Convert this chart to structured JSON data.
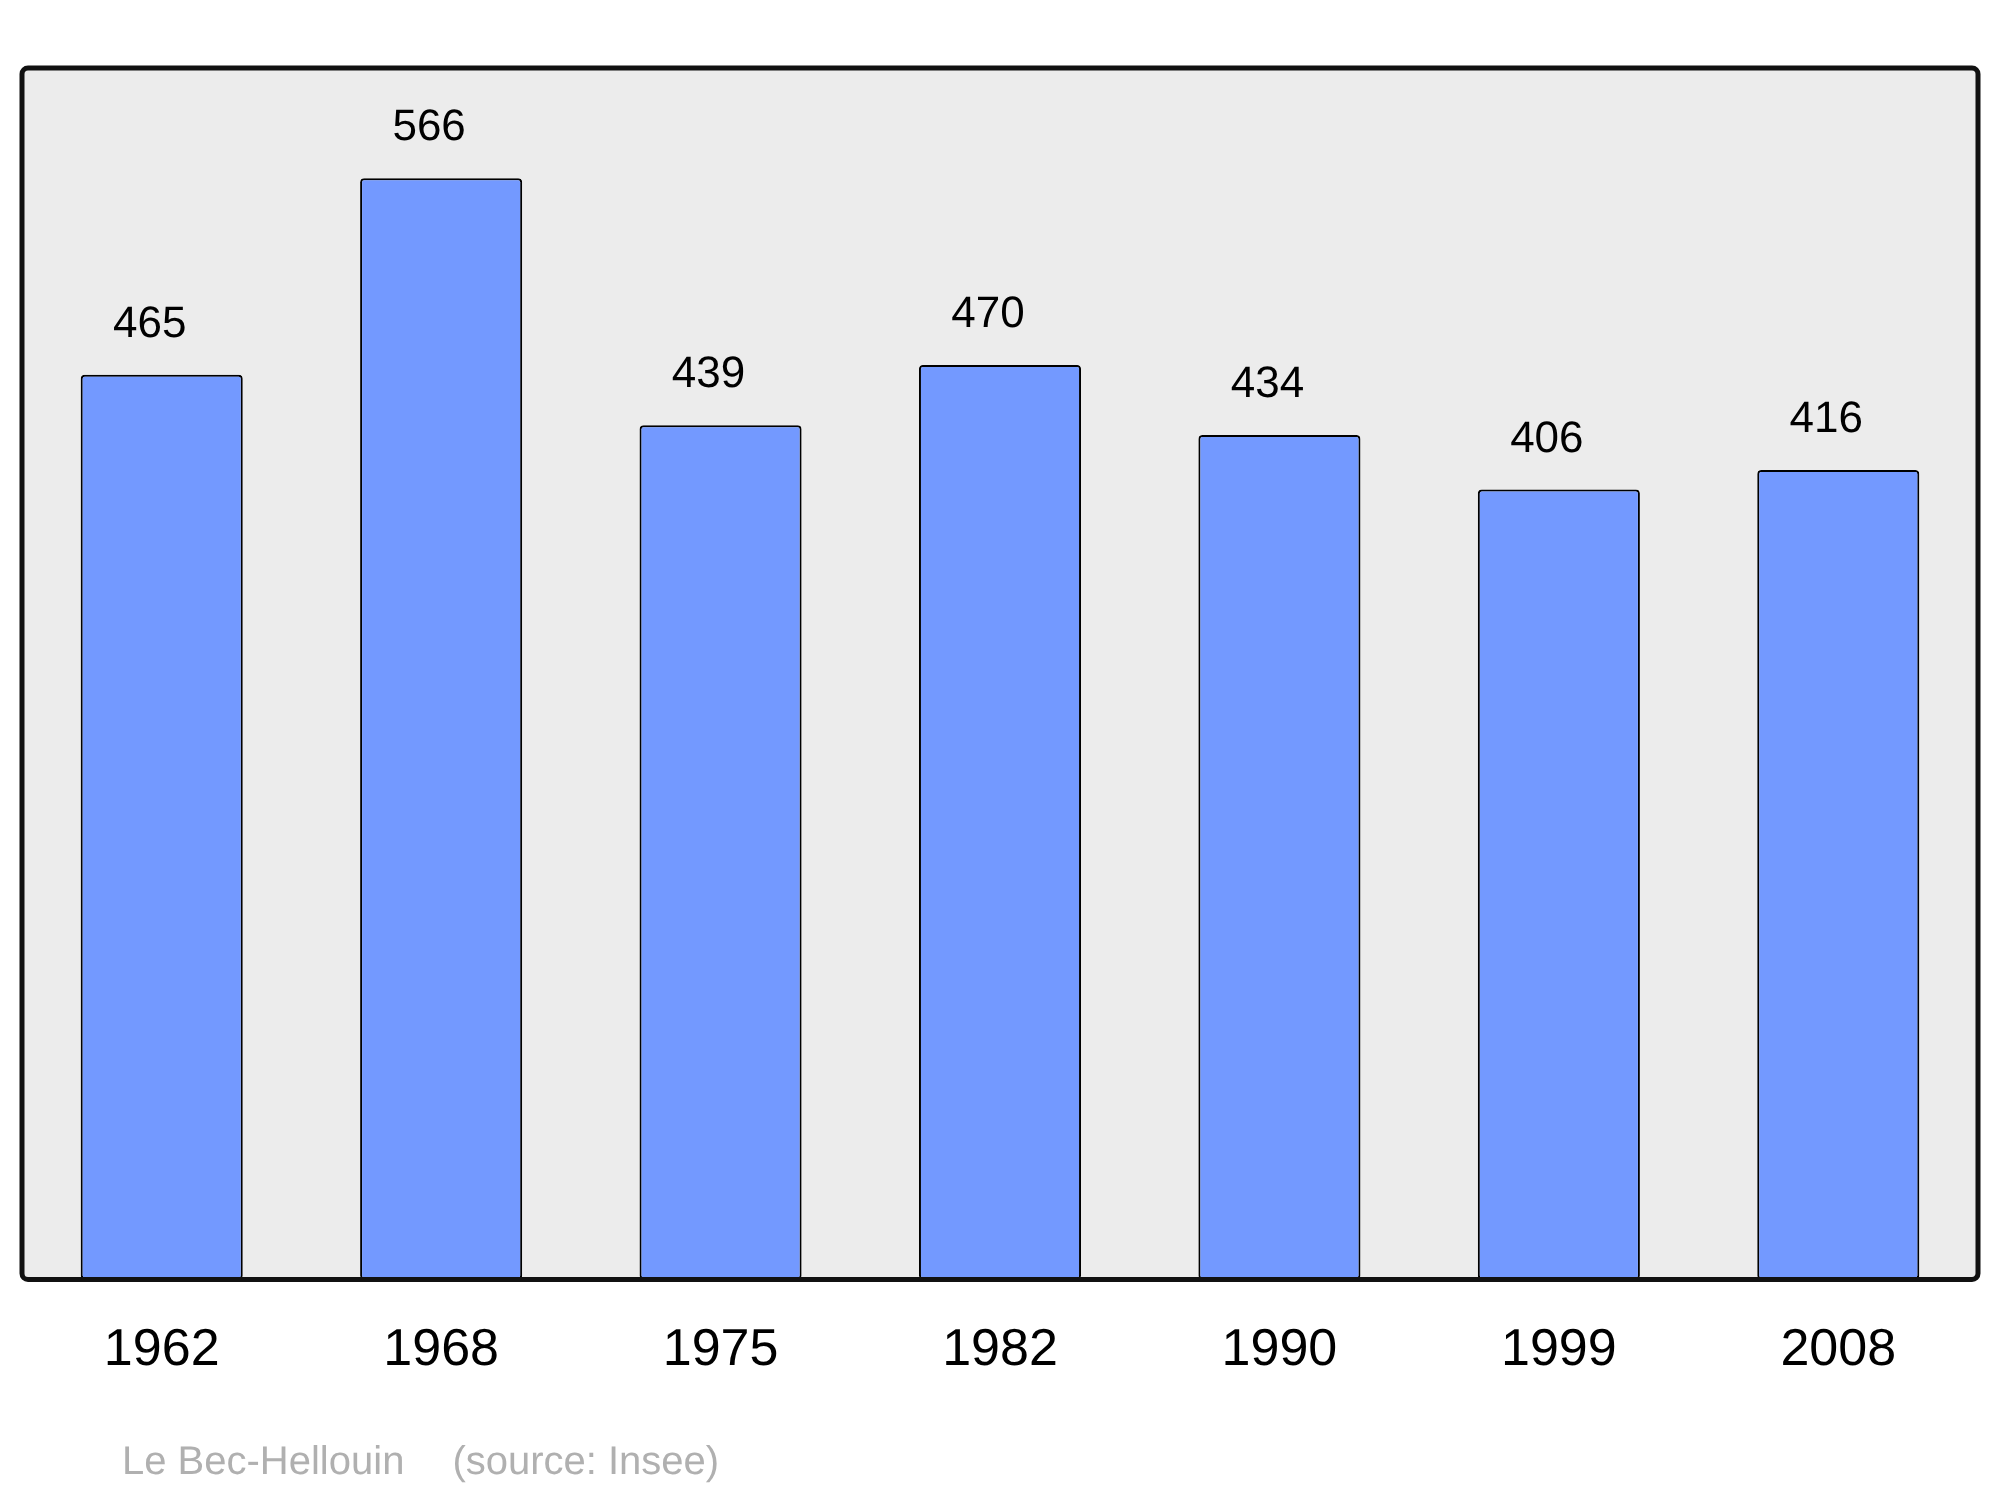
{
  "chart_data": {
    "type": "bar",
    "categories": [
      "1962",
      "1968",
      "1975",
      "1982",
      "1990",
      "1999",
      "2008"
    ],
    "values": [
      465,
      566,
      439,
      470,
      434,
      406,
      416
    ],
    "color": "#7399ff",
    "data_labels": true,
    "grid": false,
    "legend": false,
    "annotations": [
      "Le Bec-Hellouin",
      "(source: Insee)"
    ]
  }
}
